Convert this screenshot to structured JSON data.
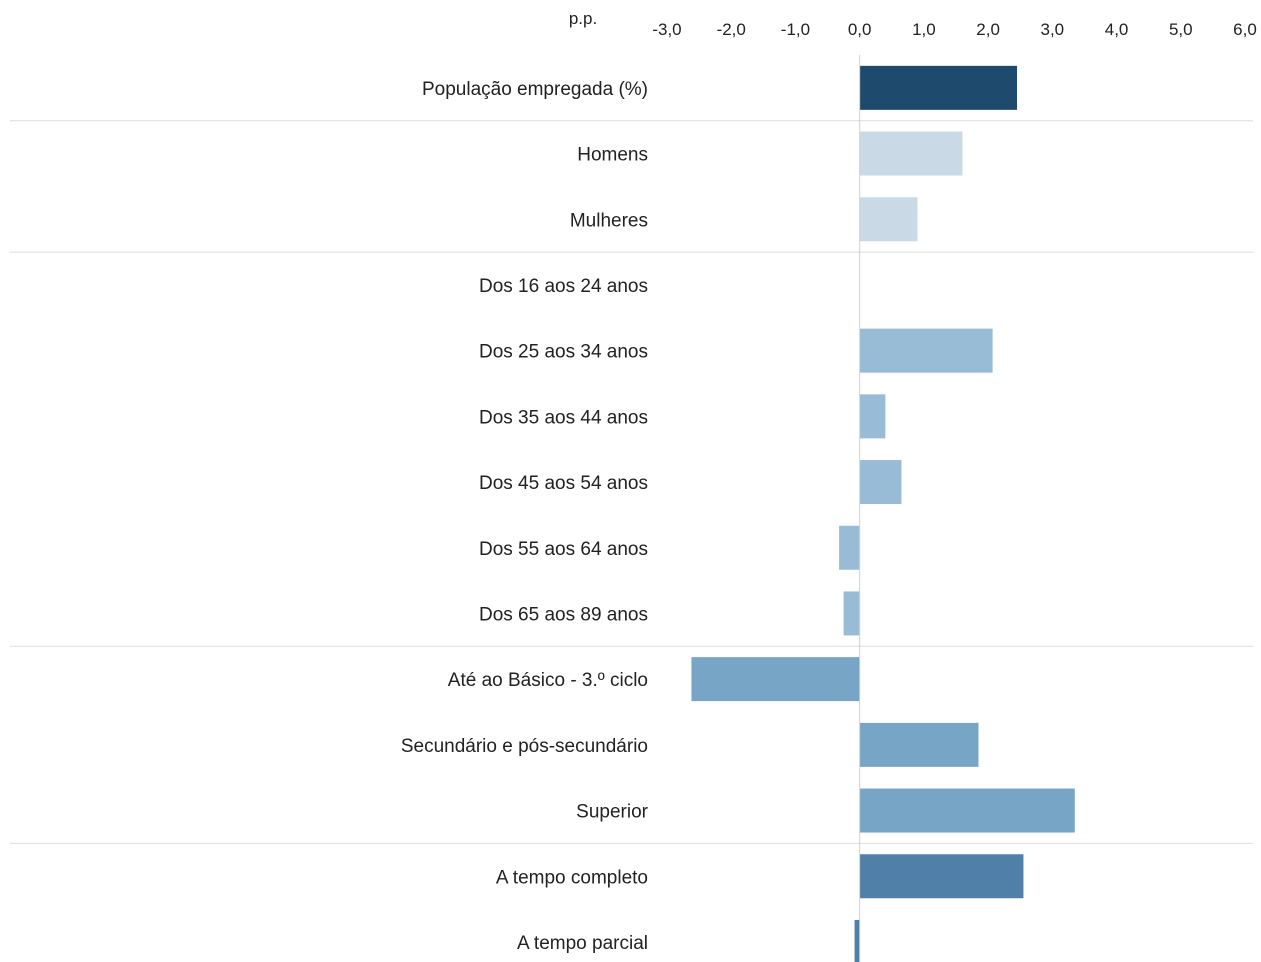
{
  "chart_data": {
    "type": "bar",
    "orientation": "horizontal",
    "unit_label": "p.p.",
    "x_ticks": [
      "-3,0",
      "-2,0",
      "-1,0",
      "0,0",
      "1,0",
      "2,0",
      "3,0",
      "4,0",
      "5,0",
      "6,0"
    ],
    "xlim": [
      -3,
      6
    ],
    "categories": [
      "População empregada (%)",
      "Homens",
      "Mulheres",
      "Dos 16 aos 24 anos",
      "Dos 25 aos 34 anos",
      "Dos 35 aos 44 anos",
      "Dos 45 aos 54 anos",
      "Dos 55 aos 64 anos",
      "Dos 65 aos 89 anos",
      "Até ao Básico - 3.º ciclo",
      "Secundário e pós-secundário",
      "Superior",
      "A tempo completo",
      "A tempo parcial"
    ],
    "values": [
      2.45,
      1.6,
      0.9,
      0.0,
      2.07,
      0.4,
      0.65,
      -0.32,
      -0.25,
      -2.62,
      1.85,
      3.35,
      2.55,
      -0.08
    ],
    "bar_colors": [
      "#1e4a6d",
      "#c9d9e6",
      "#c9d9e6",
      "#98bbd6",
      "#98bbd6",
      "#98bbd6",
      "#98bbd6",
      "#98bbd6",
      "#98bbd6",
      "#76a5c6",
      "#76a5c6",
      "#76a5c6",
      "#507fa8",
      "#507fa8"
    ],
    "group_separators_after": [
      0,
      2,
      8,
      11
    ],
    "grid": false,
    "legend": "none"
  }
}
